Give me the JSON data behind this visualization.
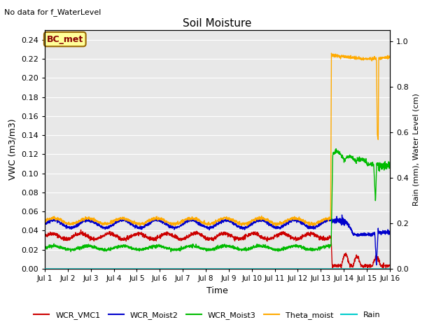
{
  "title": "Soil Moisture",
  "no_data_text": "No data for f_WaterLevel",
  "bc_met_label": "BC_met",
  "xlabel": "Time",
  "ylabel_left": "VWC (m3/m3)",
  "ylabel_right": "Rain (mm), Water Level (cm)",
  "xlim": [
    0,
    15
  ],
  "ylim_left": [
    0,
    0.25
  ],
  "ylim_right": [
    0.0,
    1.05
  ],
  "xtick_labels": [
    "Jul 1",
    "Jul 2",
    "Jul 3",
    "Jul 4",
    "Jul 5",
    "Jul 6",
    "Jul 7",
    "Jul 8",
    "Jul 9",
    "Jul 10",
    "Jul 11",
    "Jul 12",
    "Jul 13",
    "Jul 14",
    "Jul 15",
    "Jul 16"
  ],
  "xtick_positions": [
    0,
    1,
    2,
    3,
    4,
    5,
    6,
    7,
    8,
    9,
    10,
    11,
    12,
    13,
    14,
    15
  ],
  "ytick_left": [
    0.0,
    0.02,
    0.04,
    0.06,
    0.08,
    0.1,
    0.12,
    0.14,
    0.16,
    0.18,
    0.2,
    0.22,
    0.24
  ],
  "ytick_right": [
    0.0,
    0.2,
    0.4,
    0.6,
    0.8,
    1.0
  ],
  "background_color": "#e8e8e8",
  "grid_color": "#ffffff",
  "colors": {
    "WCR_VMC1": "#cc0000",
    "WCR_Moist2": "#0000cc",
    "WCR_Moist3": "#00bb00",
    "Theta_moist": "#ffaa00",
    "Rain": "#00cccc"
  },
  "legend_labels": [
    "WCR_VMC1",
    "WCR_Moist2",
    "WCR_Moist3",
    "Theta_moist",
    "Rain"
  ]
}
